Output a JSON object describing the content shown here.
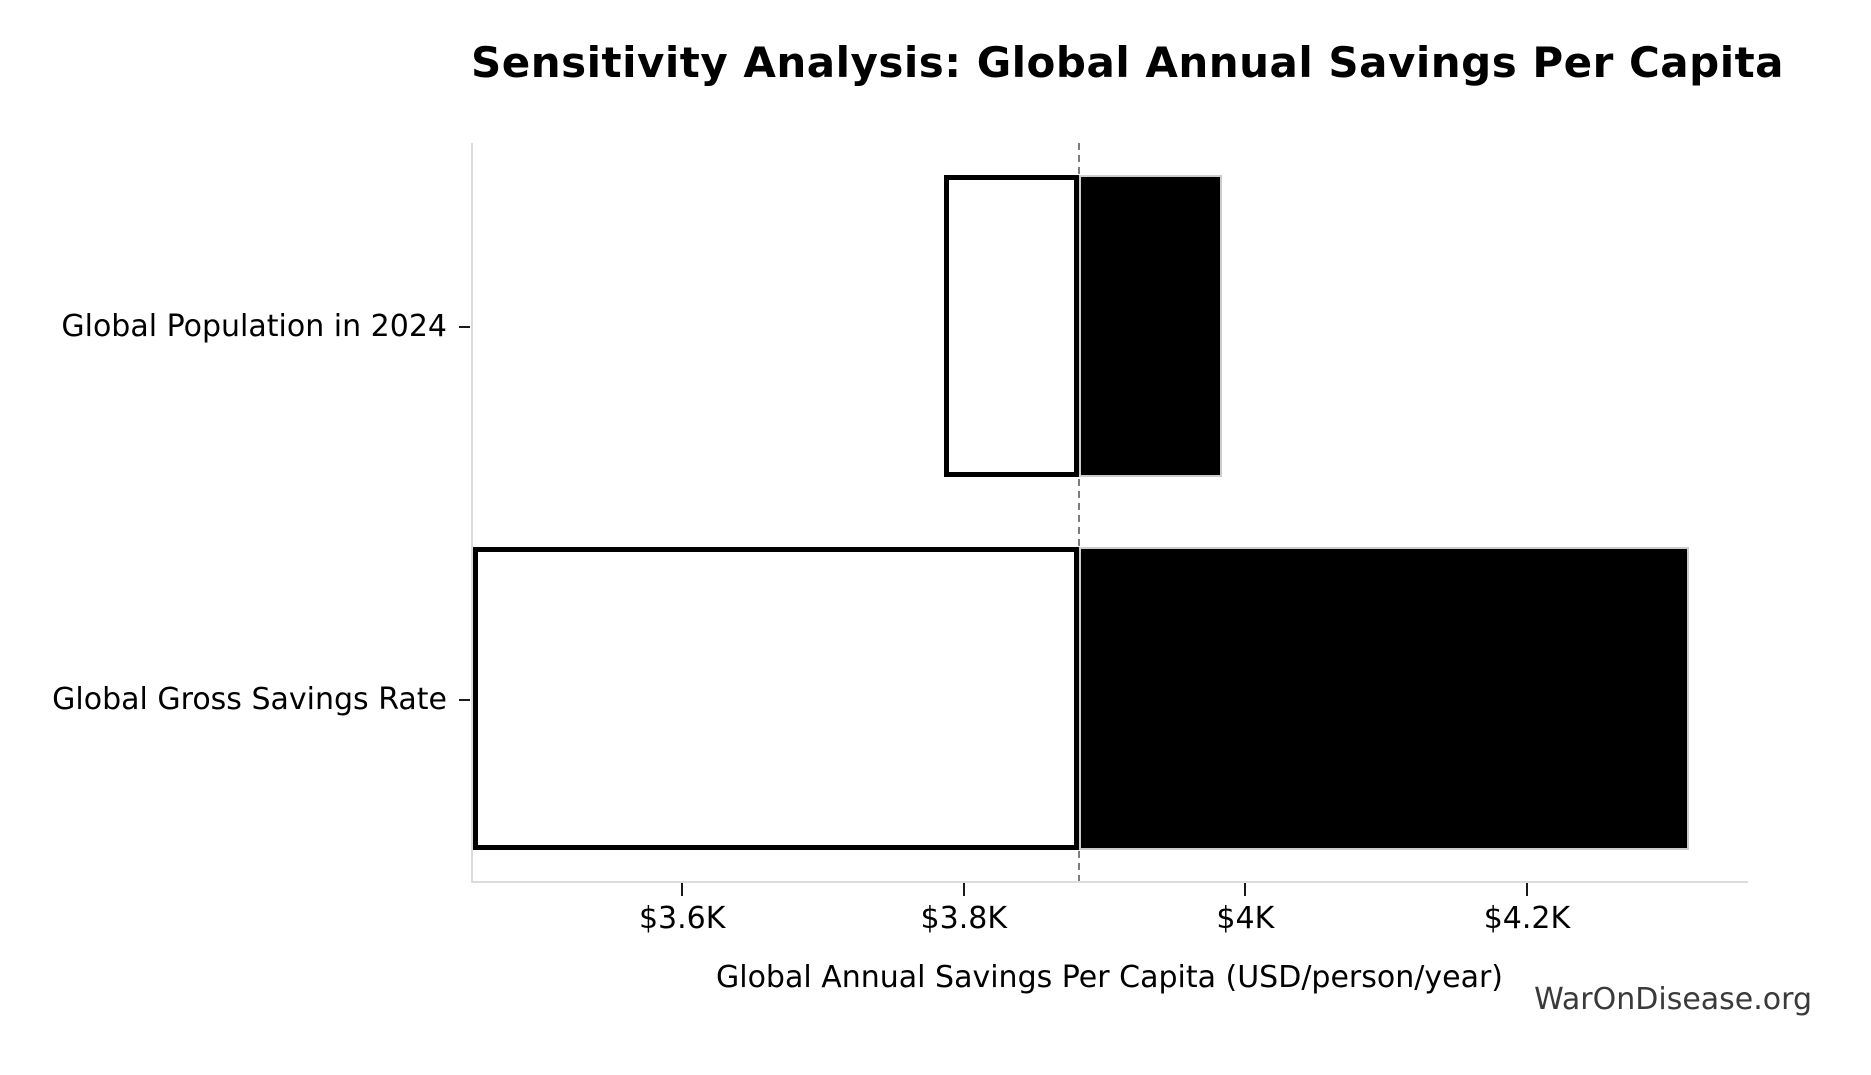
{
  "title": "Sensitivity Analysis: Global Annual Savings Per Capita",
  "watermark": "WarOnDisease.org",
  "chart_data": {
    "type": "bar",
    "subtype": "tornado-sensitivity-horizontal",
    "title": "Sensitivity Analysis: Global Annual Savings Per Capita",
    "xlabel": "Global Annual Savings Per Capita (USD/person/year)",
    "ylabel": "",
    "xlim": [
      3450,
      4357
    ],
    "baseline_value": 3881,
    "baseline_line": {
      "style": "dashed",
      "color": "#7e7e7e"
    },
    "x_ticks": [
      {
        "value": 3600,
        "label": "$3.6K"
      },
      {
        "value": 3800,
        "label": "$3.8K"
      },
      {
        "value": 4000,
        "label": "$4K"
      },
      {
        "value": 4200,
        "label": "$4.2K"
      }
    ],
    "categories": [
      "Global Population in 2024",
      "Global Gross Savings Rate"
    ],
    "bars": [
      {
        "label": "Global Population in 2024",
        "low": 3785,
        "high": 3983
      },
      {
        "label": "Global Gross Savings Rate",
        "low": 3450,
        "high": 4315
      }
    ],
    "colors": {
      "low_segment_fill": "#ffffff",
      "low_segment_edge": "#000000",
      "high_segment_fill": "#000000",
      "high_segment_edge": "#cccccc",
      "spine": "#dcdcdc",
      "text": "#000000",
      "watermark": "#3a3a3a"
    },
    "legend": null,
    "grid": false
  }
}
